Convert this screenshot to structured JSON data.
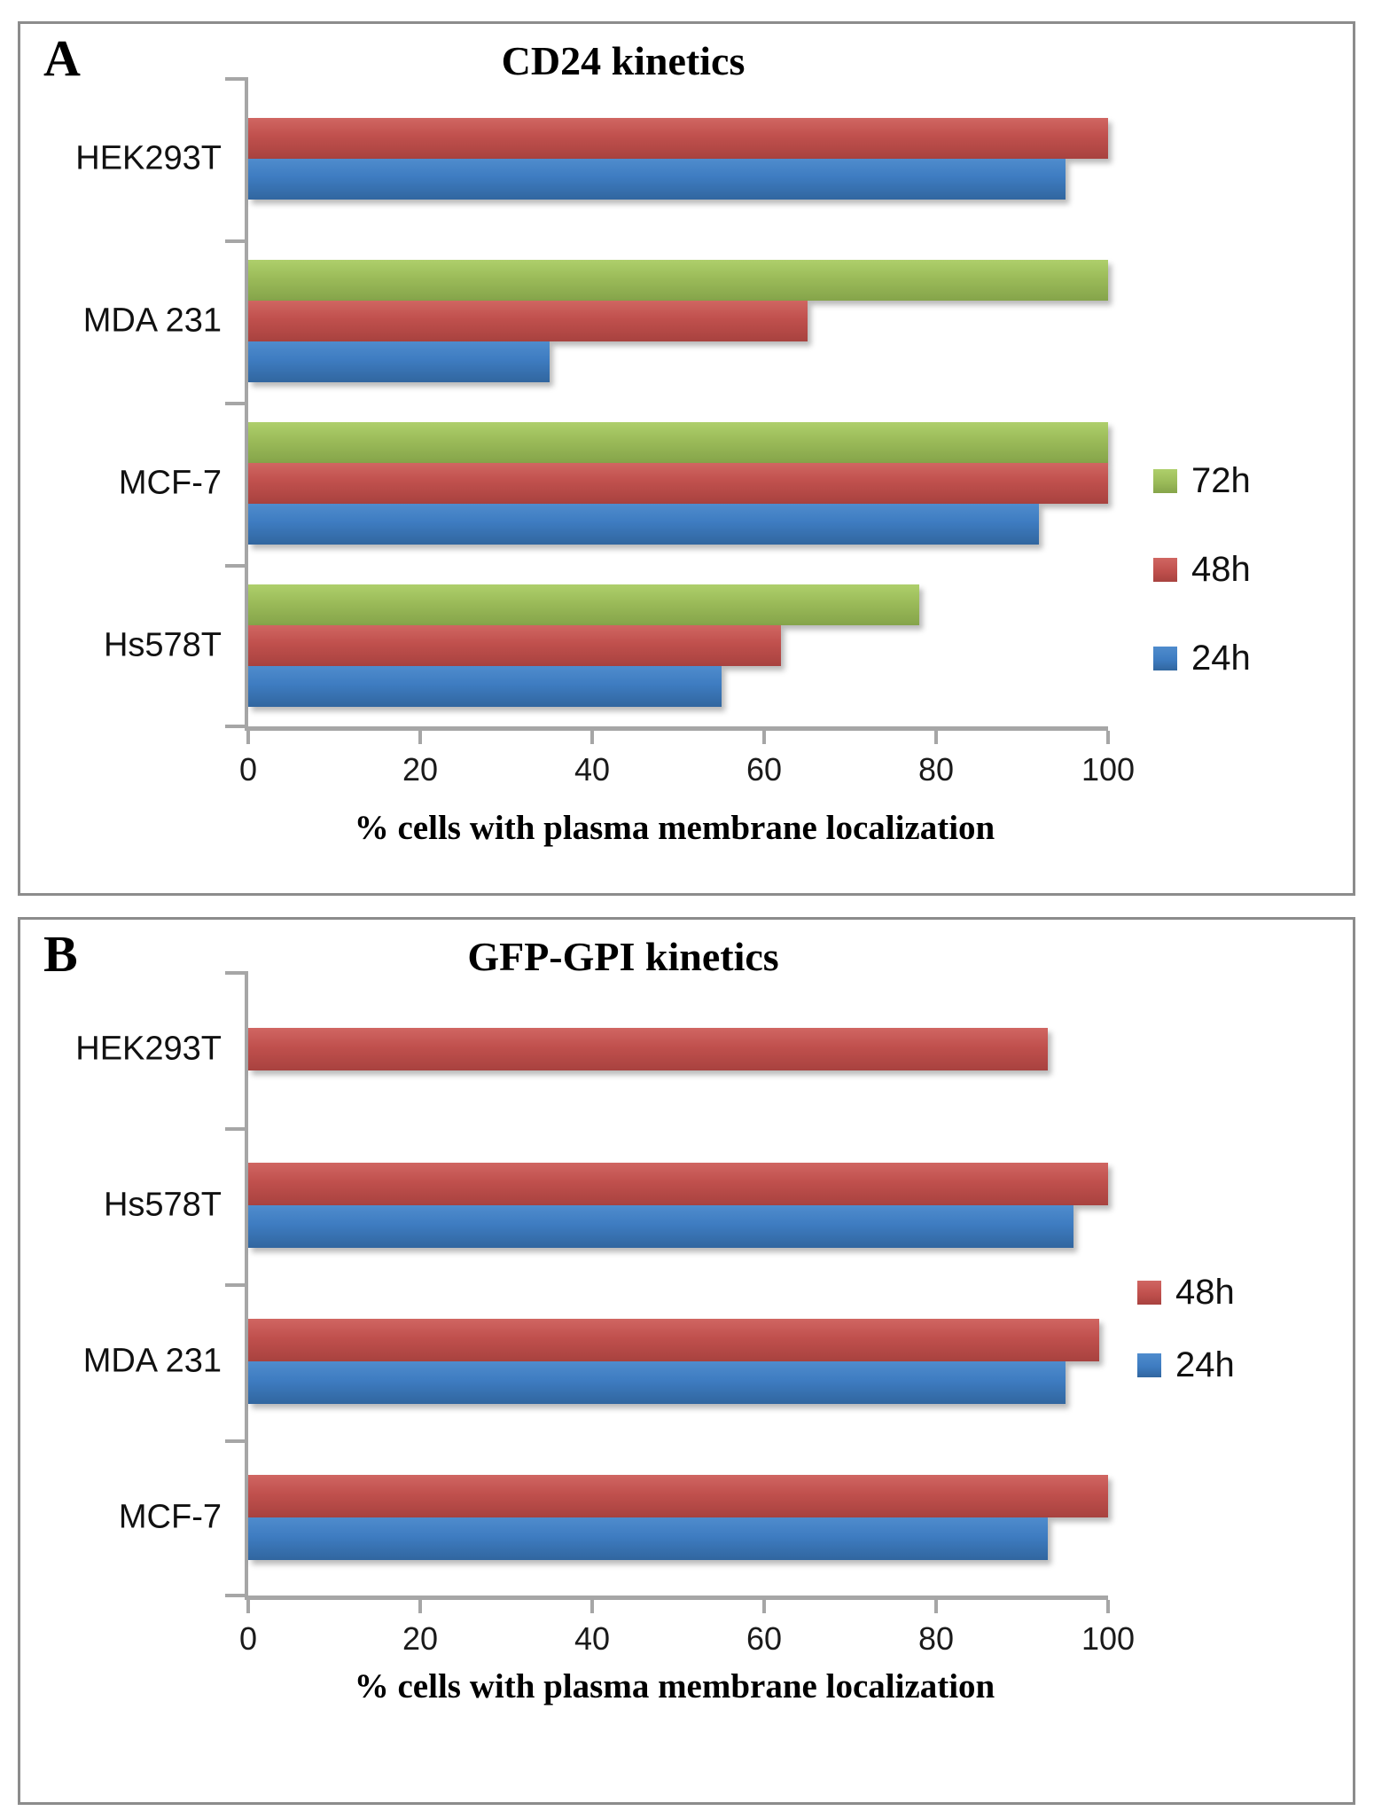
{
  "figure": {
    "background_color": "#ffffff",
    "panel_border_color": "#8c8c8c",
    "axis_color": "#a6a6a6"
  },
  "chart_data": [
    {
      "type": "bar",
      "orientation": "horizontal",
      "panel_letter": "A",
      "title": "CD24 kinetics",
      "xlabel": "% cells with plasma membrane localization",
      "xlim": [
        0,
        100
      ],
      "x_ticks": [
        0,
        20,
        40,
        60,
        80,
        100
      ],
      "grid": false,
      "legend_position": "right",
      "categories": [
        "HEK293T",
        "MDA 231",
        "MCF-7",
        "Hs578T"
      ],
      "series": [
        {
          "name": "72h",
          "color": "#9BBB59",
          "color_top": "#AECF6B",
          "color_bottom": "#85A44A",
          "values": [
            null,
            100,
            100,
            78
          ]
        },
        {
          "name": "48h",
          "color": "#C0504D",
          "color_top": "#D06662",
          "color_bottom": "#A8423F",
          "values": [
            100,
            65,
            100,
            62
          ]
        },
        {
          "name": "24h",
          "color": "#3E7CC1",
          "color_top": "#4F8CCD",
          "color_bottom": "#31669F",
          "values": [
            95,
            35,
            92,
            55
          ]
        }
      ]
    },
    {
      "type": "bar",
      "orientation": "horizontal",
      "panel_letter": "B",
      "title": "GFP-GPI kinetics",
      "xlabel": "% cells with plasma membrane localization",
      "xlim": [
        0,
        100
      ],
      "x_ticks": [
        0,
        20,
        40,
        60,
        80,
        100
      ],
      "grid": false,
      "legend_position": "right",
      "categories": [
        "HEK293T",
        "Hs578T",
        "MDA 231",
        "MCF-7"
      ],
      "series": [
        {
          "name": "48h",
          "color": "#C0504D",
          "color_top": "#D06662",
          "color_bottom": "#A8423F",
          "values": [
            93,
            100,
            99,
            100
          ]
        },
        {
          "name": "24h",
          "color": "#3E7CC1",
          "color_top": "#4F8CCD",
          "color_bottom": "#31669F",
          "values": [
            null,
            96,
            95,
            93
          ]
        }
      ]
    }
  ]
}
